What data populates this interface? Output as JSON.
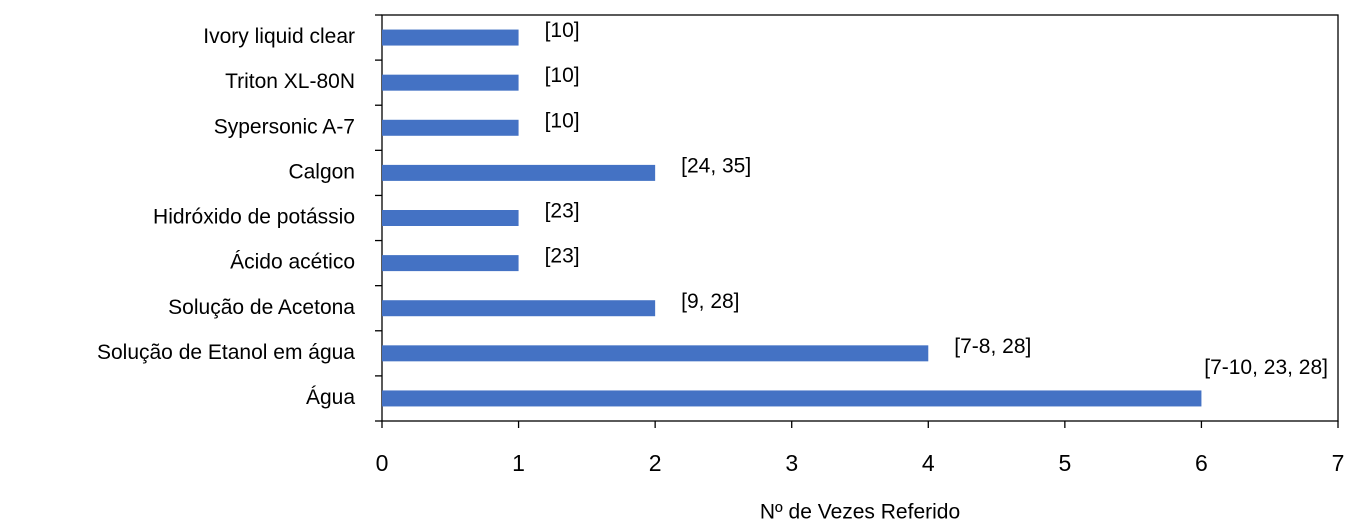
{
  "chart_data": {
    "type": "bar",
    "orientation": "horizontal",
    "xlabel": "Nº de Vezes Referido",
    "categories": [
      "Ivory liquid clear",
      "Triton XL-80N",
      "Sypersonic A-7",
      "Calgon",
      "Hidróxido de potássio",
      "Ácido acético",
      "Solução de Acetona",
      "Solução de Etanol em água",
      "Água"
    ],
    "values": [
      1,
      1,
      1,
      2,
      1,
      1,
      2,
      4,
      6
    ],
    "annotations": [
      "[10]",
      "[10]",
      "[10]",
      "[24, 35]",
      "[23]",
      "[23]",
      "[9, 28]",
      "[7-8, 28]",
      "[7-10, 23, 28]"
    ],
    "color": "#4472c4",
    "xlim": [
      0,
      7
    ],
    "xticks": [
      0,
      1,
      2,
      3,
      4,
      5,
      6,
      7
    ],
    "grid": false
  }
}
